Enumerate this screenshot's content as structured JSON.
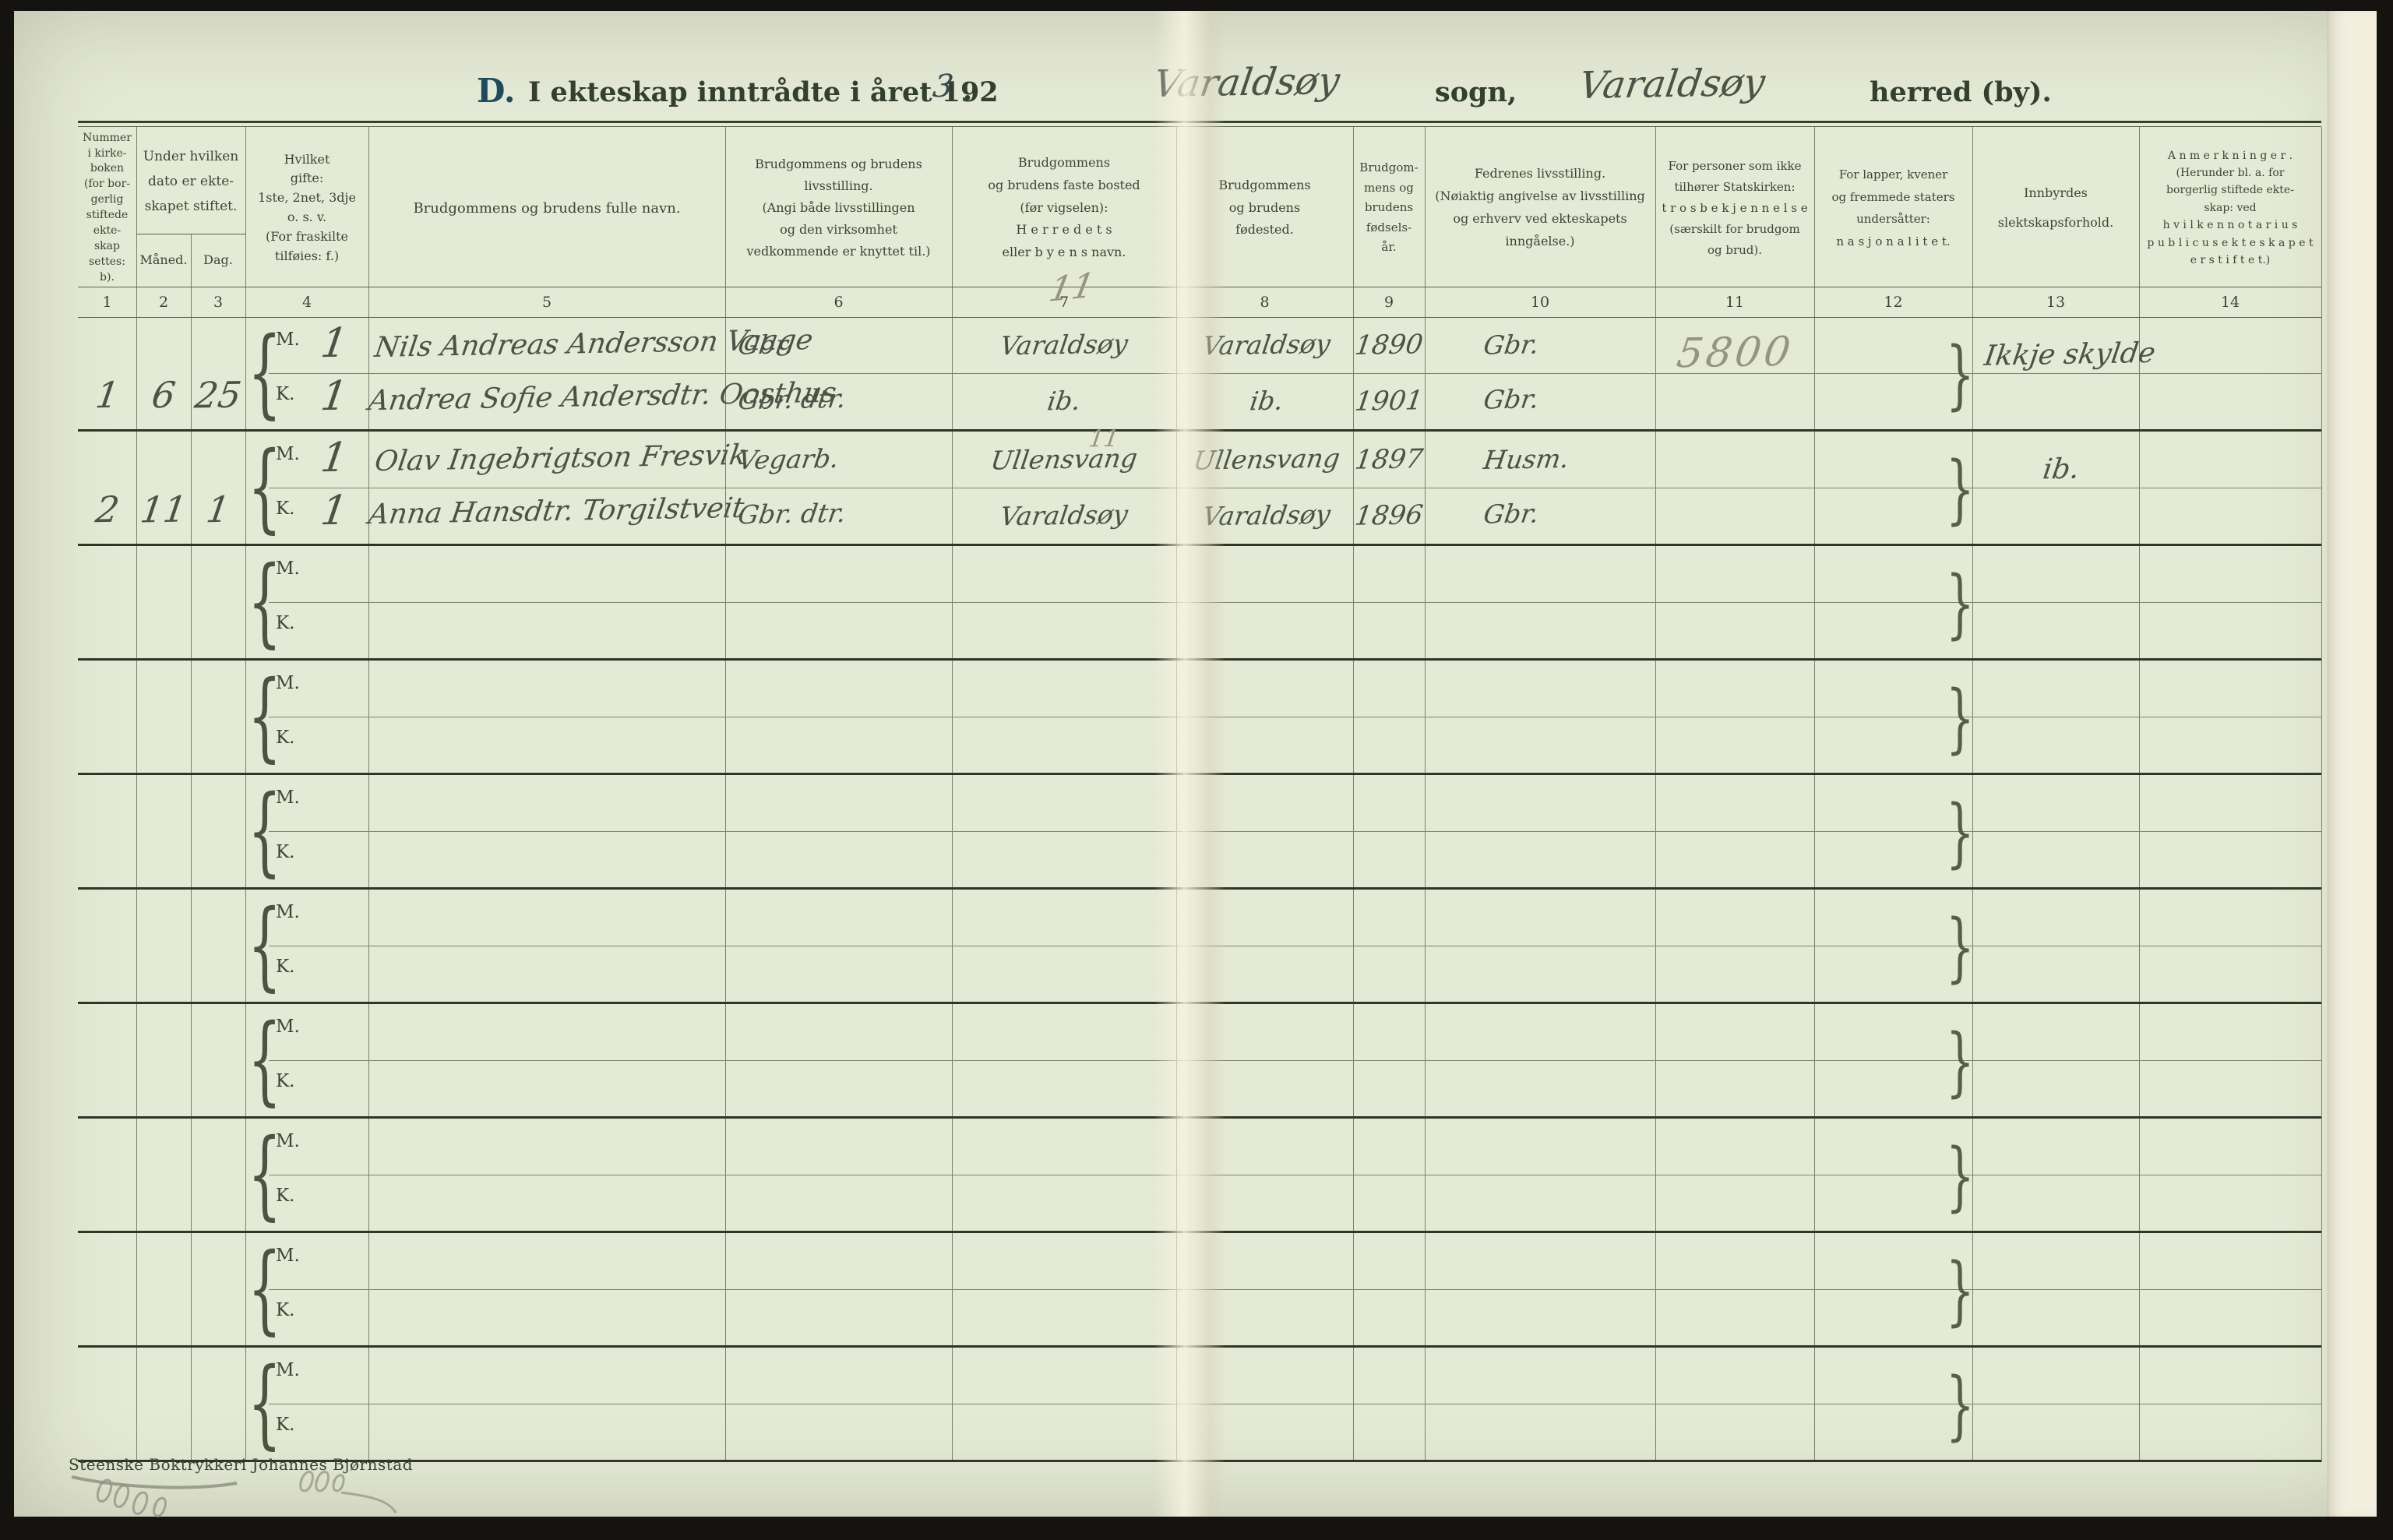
{
  "page": {
    "title_d": "D.",
    "title_main": "I ekteskap inntrådte i året 192",
    "title_year_hw": "3",
    "title_dot": ".",
    "sogn_hw": "Varaldsøy",
    "sogn_label": "sogn,",
    "herred_hw": "Varaldsøy",
    "herred_label": "herred (by).",
    "printer_footer": "Steenske Boktrykkeri Johannes Bjørnstad"
  },
  "table": {
    "headers": {
      "c1": "Nummer\ni kirke-\nboken\n(for bor-\ngerlig\nstiftede\nekte-\nskap\nsettes:\nb).",
      "c2_3": "Under hvilken\ndato er ekte-\nskapet stiftet.",
      "c2": "Måned.",
      "c3": "Dag.",
      "c4": "Hvilket\ngifte:\n1ste, 2net, 3dje\no. s. v.\n(For  fraskilte\ntilføies:  f.)",
      "c5": "Brudgommens og brudens fulle navn.",
      "c6": "Brudgommens og brudens\nlivsstilling.\n(Angi både livsstillingen\nog den virksomhet\nvedkommende er knyttet til.)",
      "c7": "Brudgommens\nog brudens faste bosted\n(før vigselen):\nH e r r e d e t s\neller  b y e n s  navn.",
      "c8": "Brudgommens\nog brudens\nfødested.",
      "c9": "Brudgom-\nmens og\nbrudens\nfødsels-\når.",
      "c10": "Fedrenes livsstilling.\n(Nøiaktig angivelse av livsstilling\nog erhverv ved ekteskapets\ninngåelse.)",
      "c11": "For personer som ikke\ntilhører Statskirken:\nt r o s b e k j e n n e l s e\n(særskilt for brudgom\nog brud).",
      "c12": "For lapper, kvener\nog fremmede staters\nundersåtter:\nn a s j o n a l i t e t.",
      "c13": "Innbyrdes\nslektskapsforhold.",
      "c14": "A n m e r k n i n g e r .\n(Herunder bl. a. for\nborgerlig stiftede ekte-\nskap:  ved\nh v i l k e n   n o t a r i u s\np u b l i c u s   e k t e s k a p e t\ne r   s t i f t e t.)"
    },
    "column_numbers": [
      "1",
      "2",
      "3",
      "4",
      "5",
      "6",
      "7",
      "8",
      "9",
      "10",
      "11",
      "12",
      "13",
      "14"
    ],
    "column_number_pencil_note": "11",
    "row_labels": {
      "m": "M.",
      "k": "K."
    },
    "rows": [
      {
        "nr": "1",
        "maaned": "6",
        "dag": "25",
        "m": {
          "gifte": "1",
          "name": "Nils Andreas Andersson Vaage",
          "livsstilling": "Gbr.",
          "bosted": "Varaldsøy",
          "bosted_note": "",
          "fodested": "Varaldsøy",
          "fodselsaar": "1890",
          "fedrenes": "Gbr."
        },
        "k": {
          "gifte": "1",
          "name": "Andrea Sofie Andersdtr. Oosthus",
          "livsstilling": "Gbr. dtr.",
          "bosted": "ib.",
          "fodested": "ib.",
          "fodselsaar": "1901",
          "fedrenes": "Gbr."
        },
        "trosbekjennelse_pencil": "5800",
        "slektskap": "Ikkje skylde"
      },
      {
        "nr": "2",
        "maaned": "11",
        "dag": "1",
        "m": {
          "gifte": "1",
          "name": "Olav Ingebrigtson Fresvik",
          "livsstilling": "Vegarb.",
          "bosted": "Ullensvang",
          "bosted_note": "11",
          "fodested": "Ullensvang",
          "fodselsaar": "1897",
          "fedrenes": "Husm."
        },
        "k": {
          "gifte": "1",
          "name": "Anna Hansdtr. Torgilstveit",
          "livsstilling": "Gbr. dtr.",
          "bosted": "Varaldsøy",
          "bosted_note": "",
          "fodested": "Varaldsøy",
          "fodselsaar": "1896",
          "fedrenes": "Gbr."
        },
        "trosbekjennelse_pencil": "",
        "slektskap": "ib."
      },
      {
        "nr": "",
        "maaned": "",
        "dag": "",
        "m": {
          "gifte": "",
          "name": "",
          "livsstilling": "",
          "bosted": "",
          "bosted_note": "",
          "fodested": "",
          "fodselsaar": "",
          "fedrenes": ""
        },
        "k": {
          "gifte": "",
          "name": "",
          "livsstilling": "",
          "bosted": "",
          "fodested": "",
          "fodselsaar": "",
          "fedrenes": ""
        },
        "trosbekjennelse_pencil": "",
        "slektskap": ""
      },
      {
        "nr": "",
        "maaned": "",
        "dag": "",
        "m": {
          "gifte": "",
          "name": "",
          "livsstilling": "",
          "bosted": "",
          "bosted_note": "",
          "fodested": "",
          "fodselsaar": "",
          "fedrenes": ""
        },
        "k": {
          "gifte": "",
          "name": "",
          "livsstilling": "",
          "bosted": "",
          "fodested": "",
          "fodselsaar": "",
          "fedrenes": ""
        },
        "trosbekjennelse_pencil": "",
        "slektskap": ""
      },
      {
        "nr": "",
        "maaned": "",
        "dag": "",
        "m": {
          "gifte": "",
          "name": "",
          "livsstilling": "",
          "bosted": "",
          "bosted_note": "",
          "fodested": "",
          "fodselsaar": "",
          "fedrenes": ""
        },
        "k": {
          "gifte": "",
          "name": "",
          "livsstilling": "",
          "bosted": "",
          "fodested": "",
          "fodselsaar": "",
          "fedrenes": ""
        },
        "trosbekjennelse_pencil": "",
        "slektskap": ""
      },
      {
        "nr": "",
        "maaned": "",
        "dag": "",
        "m": {
          "gifte": "",
          "name": "",
          "livsstilling": "",
          "bosted": "",
          "bosted_note": "",
          "fodested": "",
          "fodselsaar": "",
          "fedrenes": ""
        },
        "k": {
          "gifte": "",
          "name": "",
          "livsstilling": "",
          "bosted": "",
          "fodested": "",
          "fodselsaar": "",
          "fedrenes": ""
        },
        "trosbekjennelse_pencil": "",
        "slektskap": ""
      },
      {
        "nr": "",
        "maaned": "",
        "dag": "",
        "m": {
          "gifte": "",
          "name": "",
          "livsstilling": "",
          "bosted": "",
          "bosted_note": "",
          "fodested": "",
          "fodselsaar": "",
          "fedrenes": ""
        },
        "k": {
          "gifte": "",
          "name": "",
          "livsstilling": "",
          "bosted": "",
          "fodested": "",
          "fodselsaar": "",
          "fedrenes": ""
        },
        "trosbekjennelse_pencil": "",
        "slektskap": ""
      },
      {
        "nr": "",
        "maaned": "",
        "dag": "",
        "m": {
          "gifte": "",
          "name": "",
          "livsstilling": "",
          "bosted": "",
          "bosted_note": "",
          "fodested": "",
          "fodselsaar": "",
          "fedrenes": ""
        },
        "k": {
          "gifte": "",
          "name": "",
          "livsstilling": "",
          "bosted": "",
          "fodested": "",
          "fodselsaar": "",
          "fedrenes": ""
        },
        "trosbekjennelse_pencil": "",
        "slektskap": ""
      },
      {
        "nr": "",
        "maaned": "",
        "dag": "",
        "m": {
          "gifte": "",
          "name": "",
          "livsstilling": "",
          "bosted": "",
          "bosted_note": "",
          "fodested": "",
          "fodselsaar": "",
          "fedrenes": ""
        },
        "k": {
          "gifte": "",
          "name": "",
          "livsstilling": "",
          "bosted": "",
          "fodested": "",
          "fodselsaar": "",
          "fedrenes": ""
        },
        "trosbekjennelse_pencil": "",
        "slektskap": ""
      },
      {
        "nr": "",
        "maaned": "",
        "dag": "",
        "m": {
          "gifte": "",
          "name": "",
          "livsstilling": "",
          "bosted": "",
          "bosted_note": "",
          "fodested": "",
          "fodselsaar": "",
          "fedrenes": ""
        },
        "k": {
          "gifte": "",
          "name": "",
          "livsstilling": "",
          "bosted": "",
          "fodested": "",
          "fodselsaar": "",
          "fedrenes": ""
        },
        "trosbekjennelse_pencil": "",
        "slektskap": ""
      }
    ]
  },
  "colors": {
    "paper": "#e5ead6",
    "ink": "#4c5246",
    "print": "#3d4432",
    "pencil": "#94967f",
    "rule_thick": "#2f3527",
    "rule_thin": "#78806a"
  }
}
